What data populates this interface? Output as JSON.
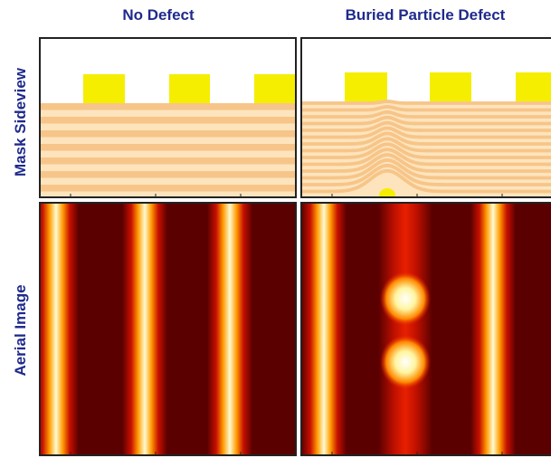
{
  "columns": [
    "No Defect",
    "Buried Particle Defect"
  ],
  "rows": [
    "Mask Sideview",
    "Aerial Image"
  ]
}
